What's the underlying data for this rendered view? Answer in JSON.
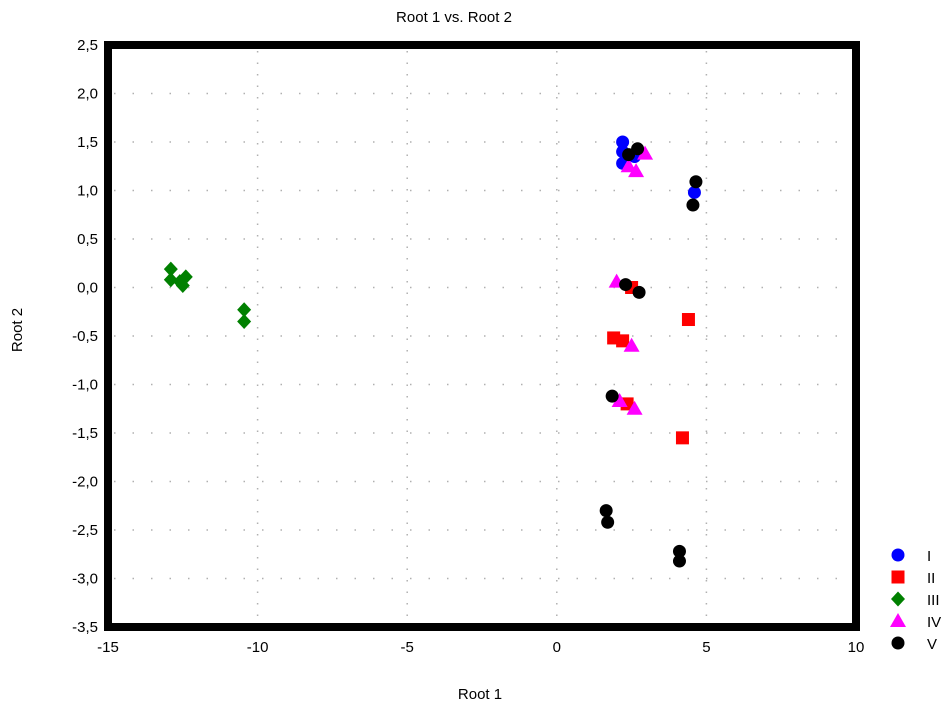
{
  "chart_data": {
    "type": "scatter",
    "title": "Root 1 vs. Root 2",
    "xlabel": "Root 1",
    "ylabel": "Root 2",
    "xlim": [
      -15,
      10
    ],
    "ylim": [
      -3.5,
      2.5
    ],
    "x_ticks": [
      -15,
      -10,
      -5,
      0,
      5,
      10
    ],
    "x_tick_labels": [
      "-15",
      "-10",
      "-5",
      "0",
      "5",
      "10"
    ],
    "y_ticks": [
      2.5,
      2.0,
      1.5,
      1.0,
      0.5,
      0.0,
      -0.5,
      -1.0,
      -1.5,
      -2.0,
      -2.5,
      -3.0,
      -3.5
    ],
    "y_tick_labels": [
      "2,5",
      "2,0",
      "1,5",
      "1,0",
      "0,5",
      "0,0",
      "-0,5",
      "-1,0",
      "-1,5",
      "-2,0",
      "-2,5",
      "-3,0",
      "-3,5"
    ],
    "grid": true,
    "legend_position": "right-bottom",
    "series": [
      {
        "name": "I",
        "marker": "circle",
        "color": "#0000ff",
        "points": [
          [
            2.2,
            1.5
          ],
          [
            2.2,
            1.4
          ],
          [
            2.2,
            1.28
          ],
          [
            2.6,
            1.35
          ],
          [
            4.6,
            0.98
          ]
        ]
      },
      {
        "name": "II",
        "marker": "square",
        "color": "#ff0000",
        "points": [
          [
            2.5,
            0.0
          ],
          [
            4.4,
            -0.33
          ],
          [
            1.9,
            -0.52
          ],
          [
            2.2,
            -0.55
          ],
          [
            2.35,
            -1.2
          ],
          [
            4.2,
            -1.55
          ]
        ]
      },
      {
        "name": "III",
        "marker": "diamond",
        "color": "#008000",
        "points": [
          [
            -12.9,
            0.19
          ],
          [
            -12.9,
            0.08
          ],
          [
            -12.6,
            0.06
          ],
          [
            -12.4,
            0.11
          ],
          [
            -12.5,
            0.02
          ],
          [
            -10.45,
            -0.23
          ],
          [
            -10.45,
            -0.35
          ]
        ]
      },
      {
        "name": "IV",
        "marker": "triangle",
        "color": "#ff00ff",
        "points": [
          [
            2.4,
            1.25
          ],
          [
            2.65,
            1.2
          ],
          [
            2.95,
            1.38
          ],
          [
            2.0,
            0.06
          ],
          [
            2.5,
            -0.6
          ],
          [
            2.1,
            -1.17
          ],
          [
            2.6,
            -1.25
          ]
        ]
      },
      {
        "name": "V",
        "marker": "circle",
        "color": "#000000",
        "points": [
          [
            2.7,
            1.43
          ],
          [
            2.4,
            1.37
          ],
          [
            4.65,
            1.09
          ],
          [
            4.55,
            0.85
          ],
          [
            2.3,
            0.03
          ],
          [
            2.75,
            -0.05
          ],
          [
            1.85,
            -1.12
          ],
          [
            1.65,
            -2.3
          ],
          [
            1.7,
            -2.42
          ],
          [
            4.1,
            -2.72
          ],
          [
            4.1,
            -2.82
          ]
        ]
      }
    ]
  }
}
